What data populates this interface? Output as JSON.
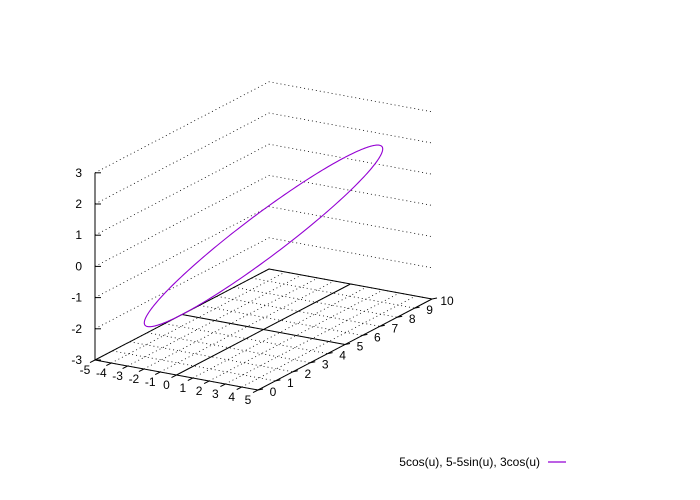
{
  "chart_data": {
    "type": "line",
    "dimension": "3d",
    "parametric": true,
    "title": "",
    "xlabel": "",
    "ylabel": "",
    "zlabel": "",
    "xlim": [
      -5,
      5
    ],
    "ylim": [
      0,
      10
    ],
    "zlim": [
      -3,
      3
    ],
    "x_ticks": [
      -5,
      -4,
      -3,
      -2,
      -1,
      0,
      1,
      2,
      3,
      4,
      5
    ],
    "y_ticks": [
      0,
      1,
      2,
      3,
      4,
      5,
      6,
      7,
      8,
      9,
      10
    ],
    "z_ticks": [
      -3,
      -2,
      -1,
      0,
      1,
      2,
      3
    ],
    "grid": true,
    "legend_position": "bottom-right",
    "series": [
      {
        "name": "5cos(u), 5-5sin(u), 3cos(u)",
        "color": "#9400d3",
        "x_expr": "5*cos(u)",
        "y_expr": "5-5*sin(u)",
        "z_expr": "3*cos(u)",
        "u_range": [
          0,
          6.283
        ]
      }
    ]
  }
}
